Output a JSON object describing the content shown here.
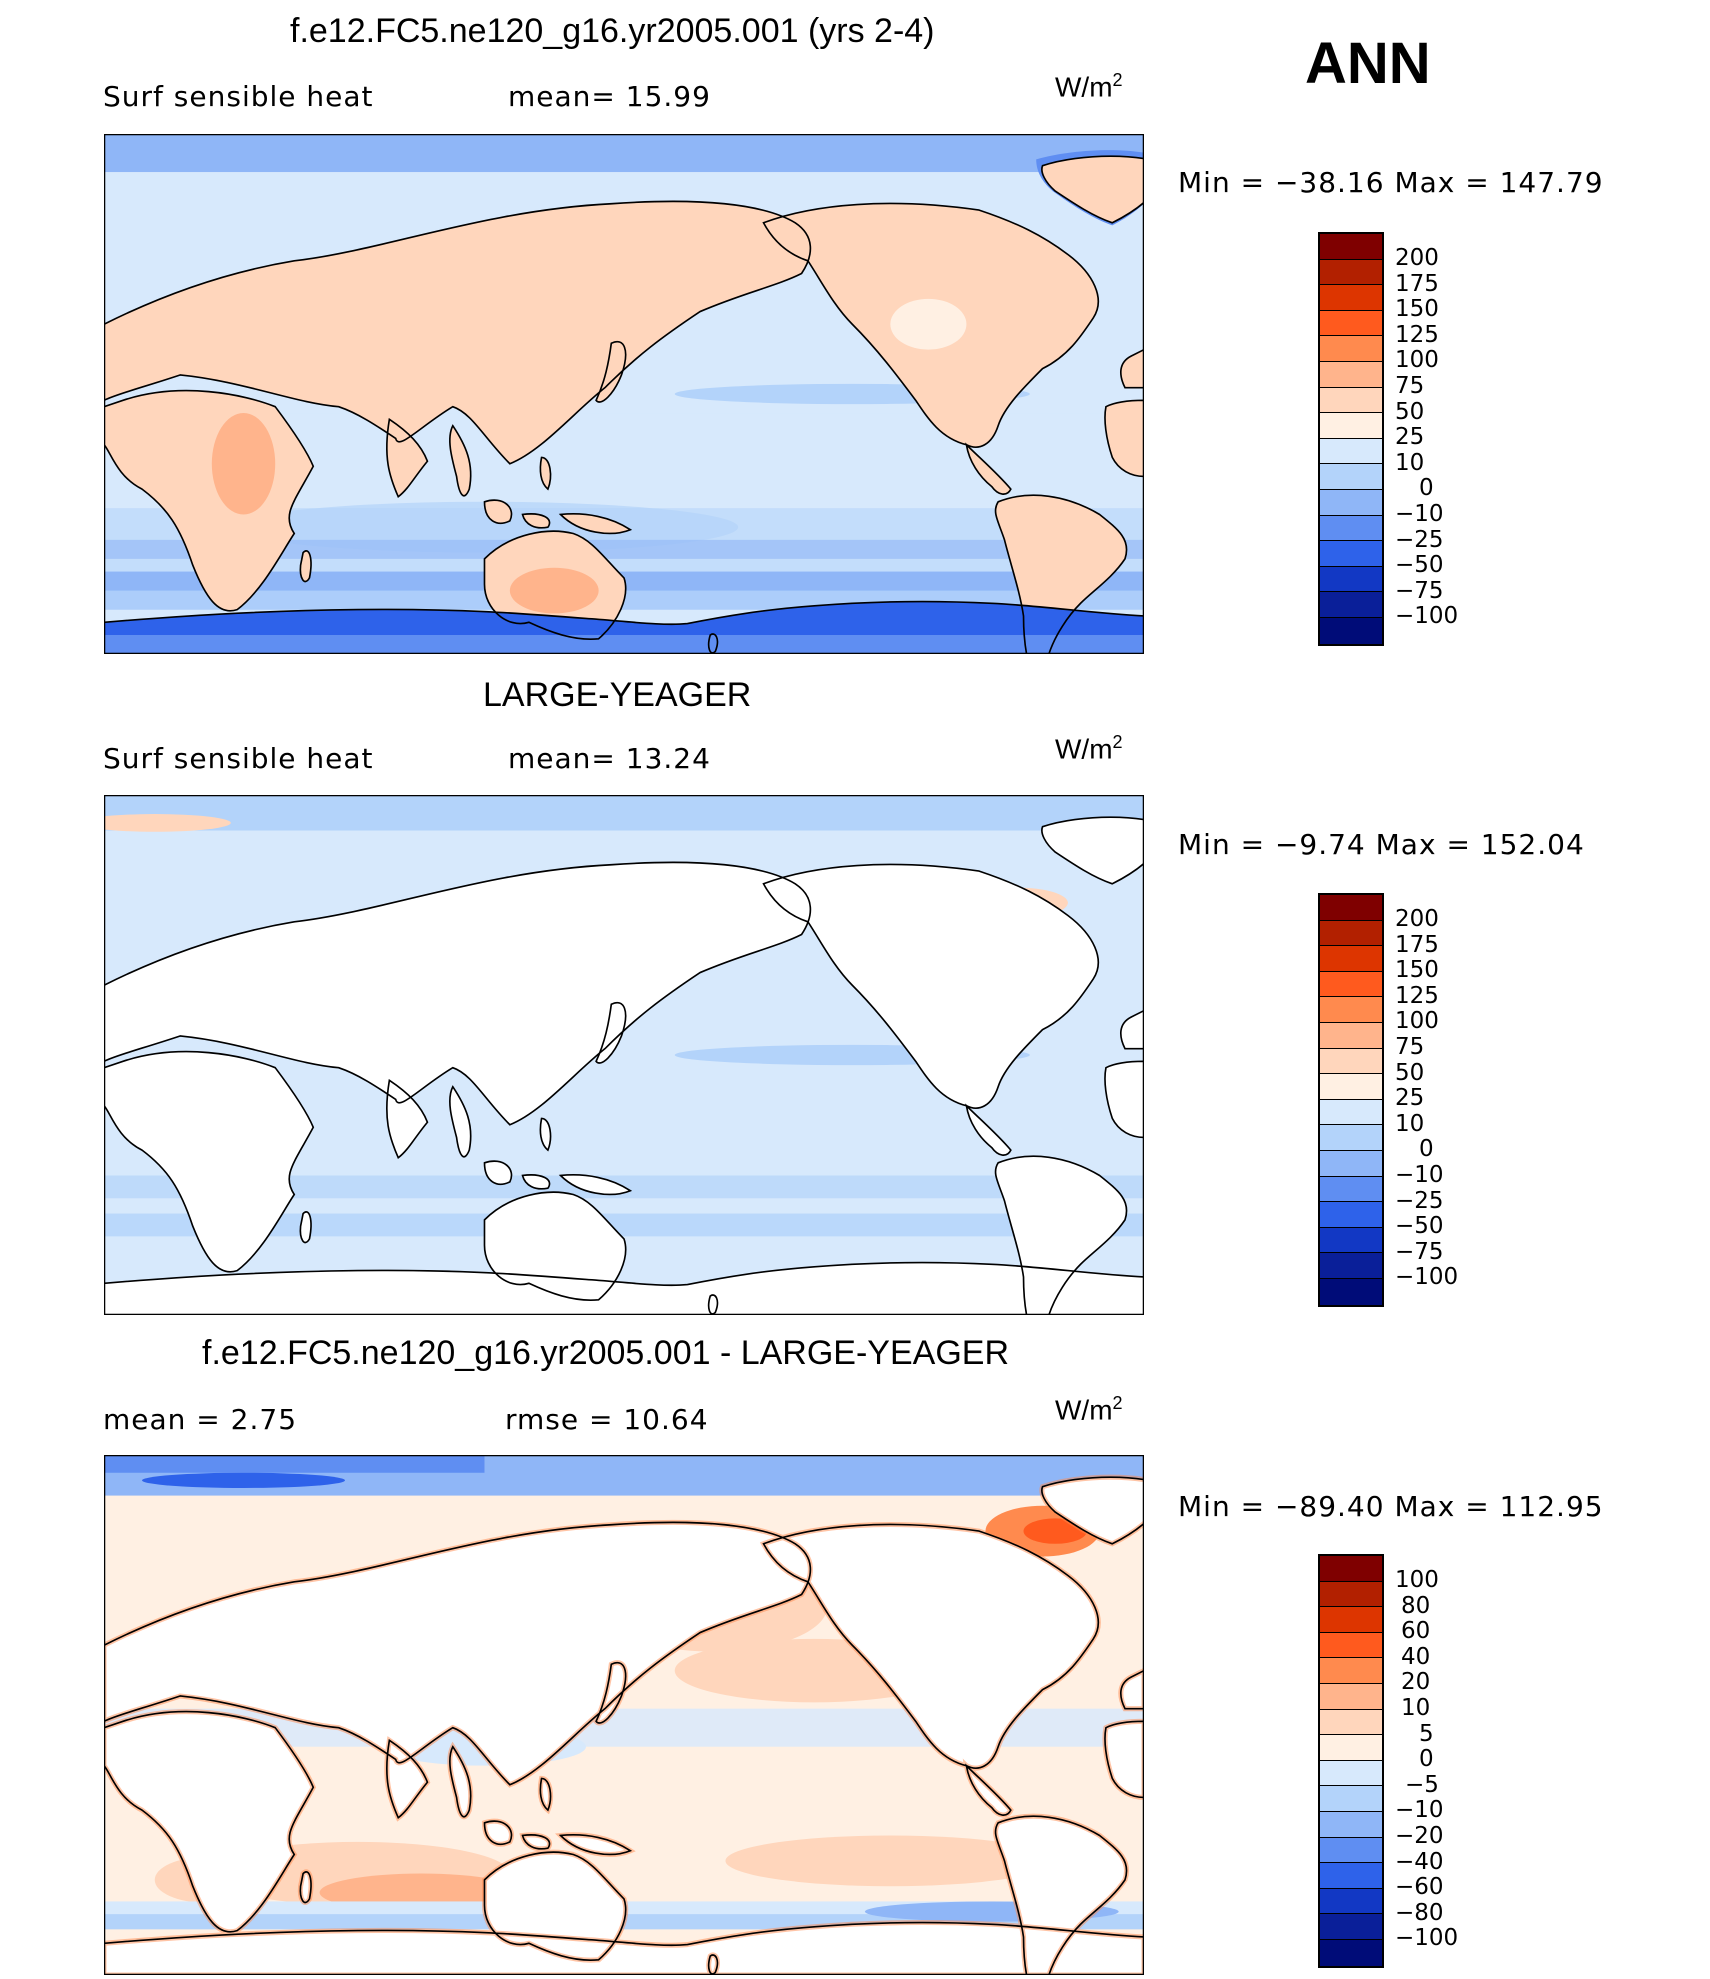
{
  "header": {
    "season": "ANN"
  },
  "panels": [
    {
      "title": "f.e12.FC5.ne120_g16.yr2005.001 (yrs 2-4)",
      "left_label": "Surf  sensible  heat",
      "middle_label": "mean=   15.99",
      "units_main": "W/m",
      "units_sup": "2",
      "minmax": "Min  =  −38.16  Max  =  147.79",
      "levels": [
        "200",
        "175",
        "150",
        "125",
        "100",
        "75",
        "50",
        "25",
        "10",
        "0",
        "−10",
        "−25",
        "−50",
        "−75",
        "−100"
      ],
      "colors": [
        "#7f0000",
        "#b22000",
        "#dd3500",
        "#ff5a1e",
        "#ff8a4e",
        "#ffb48c",
        "#ffd6bc",
        "#fff0e3",
        "#d7e9fc",
        "#b3d3fa",
        "#8fb6f7",
        "#5f8ef2",
        "#2e62ea",
        "#1238c4",
        "#0a1f99",
        "#000c78"
      ]
    },
    {
      "title": "LARGE-YEAGER",
      "left_label": "Surf  sensible  heat",
      "middle_label": "mean=   13.24",
      "units_main": "W/m",
      "units_sup": "2",
      "minmax": "Min  =   −9.74  Max  =  152.04",
      "levels": [
        "200",
        "175",
        "150",
        "125",
        "100",
        "75",
        "50",
        "25",
        "10",
        "0",
        "−10",
        "−25",
        "−50",
        "−75",
        "−100"
      ],
      "colors": [
        "#7f0000",
        "#b22000",
        "#dd3500",
        "#ff5a1e",
        "#ff8a4e",
        "#ffb48c",
        "#ffd6bc",
        "#fff0e3",
        "#d7e9fc",
        "#b3d3fa",
        "#8fb6f7",
        "#5f8ef2",
        "#2e62ea",
        "#1238c4",
        "#0a1f99",
        "#000c78"
      ]
    },
    {
      "title": "f.e12.FC5.ne120_g16.yr2005.001 - LARGE-YEAGER",
      "left_label": "mean  =     2.75",
      "middle_label": "rmse  =    10.64",
      "units_main": "W/m",
      "units_sup": "2",
      "minmax": "Min  =  −89.40  Max  =  112.95",
      "levels": [
        "100",
        "80",
        "60",
        "40",
        "20",
        "10",
        "5",
        "0",
        "−5",
        "−10",
        "−20",
        "−40",
        "−60",
        "−80",
        "−100"
      ],
      "colors": [
        "#7f0000",
        "#b22000",
        "#dd3500",
        "#ff5a1e",
        "#ff8a4e",
        "#ffb48c",
        "#ffd6bc",
        "#fff0e3",
        "#d7e9fc",
        "#b3d3fa",
        "#8fb6f7",
        "#5f8ef2",
        "#2e62ea",
        "#1238c4",
        "#0a1f99",
        "#000c78"
      ]
    }
  ]
}
